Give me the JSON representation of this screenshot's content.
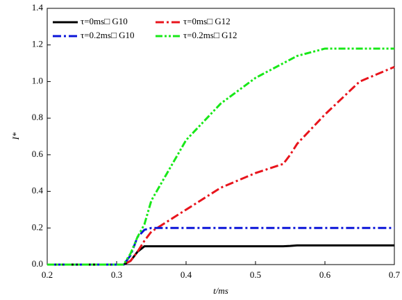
{
  "chart_data": {
    "type": "line",
    "xlabel": "t/ms",
    "ylabel": "I*",
    "x": [
      0.2,
      0.25,
      0.3,
      0.31,
      0.32,
      0.33,
      0.34,
      0.35,
      0.4,
      0.45,
      0.5,
      0.54,
      0.55,
      0.56,
      0.6,
      0.65,
      0.7
    ],
    "series": [
      {
        "name": "τ=0ms□  G10",
        "color": "#000000",
        "style": "solid",
        "values": [
          0,
          0,
          0,
          0,
          0.02,
          0.07,
          0.1,
          0.1,
          0.1,
          0.1,
          0.1,
          0.1,
          0.102,
          0.105,
          0.105,
          0.105,
          0.105
        ]
      },
      {
        "name": "τ=0ms□  G12",
        "color": "#e8141c",
        "style": "dashdot",
        "values": [
          0,
          0,
          0,
          0,
          0.02,
          0.07,
          0.13,
          0.18,
          0.3,
          0.42,
          0.5,
          0.55,
          0.6,
          0.66,
          0.82,
          1.0,
          1.08
        ]
      },
      {
        "name": "τ=0.2ms□  G10",
        "color": "#0a14d8",
        "style": "dashdot",
        "values": [
          0,
          0,
          0,
          0,
          0.05,
          0.15,
          0.19,
          0.2,
          0.2,
          0.2,
          0.2,
          0.2,
          0.2,
          0.2,
          0.2,
          0.2,
          0.2
        ]
      },
      {
        "name": "τ=0.2ms□  G12",
        "color": "#18e818",
        "style": "dashdotdot",
        "values": [
          0,
          0,
          0,
          0,
          0.06,
          0.15,
          0.22,
          0.35,
          0.68,
          0.88,
          1.02,
          1.1,
          1.12,
          1.14,
          1.18,
          1.18,
          1.18
        ]
      }
    ],
    "xlim": [
      0.2,
      0.7
    ],
    "xticks": [
      0.2,
      0.3,
      0.4,
      0.5,
      0.6,
      0.7
    ],
    "ylim": [
      0,
      1.4
    ],
    "yticks": [
      {
        "value": 0,
        "label": "0.0"
      },
      0.2,
      0.4,
      0.6,
      0.8,
      {
        "value": 1,
        "label": "1.0"
      },
      1.2,
      1.4
    ],
    "legend": "upper-left"
  }
}
